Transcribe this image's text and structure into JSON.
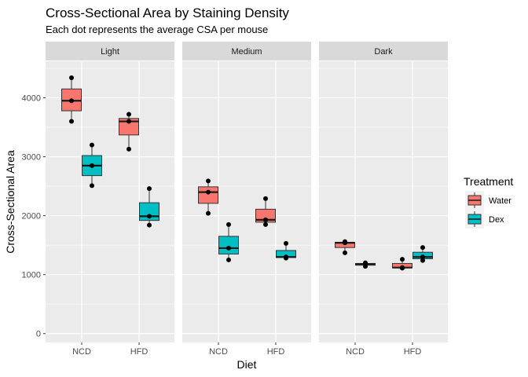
{
  "chart_data": {
    "type": "boxplot",
    "title": "Cross-Sectional Area by Staining Density",
    "subtitle": "Each dot represents the average CSA per mouse",
    "xlabel": "Diet",
    "ylabel": "Cross-Sectional Area",
    "ylim": [
      -150,
      4620
    ],
    "yticks": [
      0,
      1000,
      2000,
      3000,
      4000
    ],
    "categories": [
      "NCD",
      "HFD"
    ],
    "facets": [
      "Light",
      "Medium",
      "Dark"
    ],
    "legend": {
      "title": "Treatment",
      "position": "right",
      "entries": [
        {
          "name": "Water",
          "color": "#F8766D"
        },
        {
          "name": "Dex",
          "color": "#00BFC4"
        }
      ]
    },
    "panels": [
      {
        "facet": "Light",
        "boxes": [
          {
            "diet": "NCD",
            "treatment": "Water",
            "min": 3600,
            "q1": 3780,
            "median": 3950,
            "q3": 4150,
            "max": 4340,
            "points": [
              3600,
              3950,
              4340
            ]
          },
          {
            "diet": "NCD",
            "treatment": "Dex",
            "min": 2510,
            "q1": 2680,
            "median": 2850,
            "q3": 3020,
            "max": 3200,
            "points": [
              2510,
              2850,
              3200
            ]
          },
          {
            "diet": "HFD",
            "treatment": "Water",
            "min": 3130,
            "q1": 3370,
            "median": 3600,
            "q3": 3650,
            "max": 3720,
            "points": [
              3130,
              3600,
              3720
            ]
          },
          {
            "diet": "HFD",
            "treatment": "Dex",
            "min": 1840,
            "q1": 1920,
            "median": 1990,
            "q3": 2220,
            "max": 2460,
            "points": [
              1840,
              1990,
              2460
            ]
          }
        ]
      },
      {
        "facet": "Medium",
        "boxes": [
          {
            "diet": "NCD",
            "treatment": "Water",
            "min": 2040,
            "q1": 2210,
            "median": 2400,
            "q3": 2490,
            "max": 2590,
            "points": [
              2040,
              2400,
              2590
            ]
          },
          {
            "diet": "NCD",
            "treatment": "Dex",
            "min": 1250,
            "q1": 1350,
            "median": 1450,
            "q3": 1650,
            "max": 1850,
            "points": [
              1250,
              1450,
              1850
            ]
          },
          {
            "diet": "HFD",
            "treatment": "Water",
            "min": 1850,
            "q1": 1890,
            "median": 1930,
            "q3": 2110,
            "max": 2290,
            "points": [
              1850,
              1930,
              2290
            ]
          },
          {
            "diet": "HFD",
            "treatment": "Dex",
            "min": 1280,
            "q1": 1290,
            "median": 1300,
            "q3": 1410,
            "max": 1530,
            "points": [
              1280,
              1300,
              1530
            ]
          }
        ]
      },
      {
        "facet": "Dark",
        "boxes": [
          {
            "diet": "NCD",
            "treatment": "Water",
            "min": 1370,
            "q1": 1460,
            "median": 1540,
            "q3": 1550,
            "max": 1560,
            "points": [
              1370,
              1540,
              1560
            ]
          },
          {
            "diet": "NCD",
            "treatment": "Dex",
            "min": 1140,
            "q1": 1160,
            "median": 1180,
            "q3": 1190,
            "max": 1200,
            "points": [
              1140,
              1180,
              1200
            ]
          },
          {
            "diet": "HFD",
            "treatment": "Water",
            "min": 1110,
            "q1": 1115,
            "median": 1120,
            "q3": 1190,
            "max": 1260,
            "points": [
              1110,
              1120,
              1260
            ]
          },
          {
            "diet": "HFD",
            "treatment": "Dex",
            "min": 1240,
            "q1": 1270,
            "median": 1300,
            "q3": 1380,
            "max": 1460,
            "points": [
              1240,
              1300,
              1460
            ]
          }
        ]
      }
    ]
  }
}
